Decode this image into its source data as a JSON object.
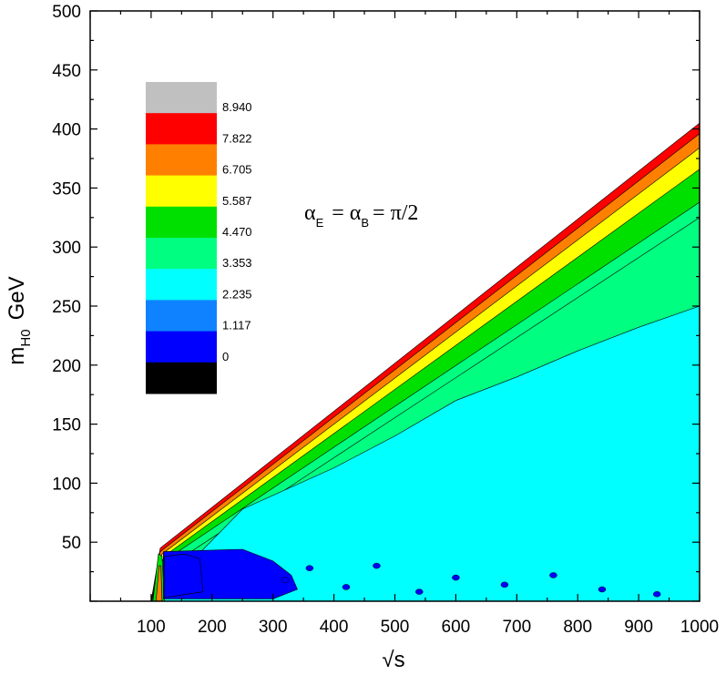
{
  "chart_data": {
    "type": "heatmap",
    "subtype": "filled-contour",
    "xlabel": "√s",
    "ylabel": {
      "main": "m",
      "sub": "H0",
      "unit": "GeV"
    },
    "xlim": [
      0,
      1000
    ],
    "ylim": [
      0,
      500
    ],
    "xticks": [
      "100",
      "200",
      "300",
      "400",
      "500",
      "600",
      "700",
      "800",
      "900",
      "1000"
    ],
    "yticks": [
      "50",
      "100",
      "150",
      "200",
      "250",
      "300",
      "350",
      "400",
      "450",
      "500"
    ],
    "annotation": {
      "alpha": "α",
      "sub_e": "E",
      "sub_b": "B",
      "rest": "= π/2"
    },
    "levels": [
      "0",
      "1.117",
      "2.235",
      "3.353",
      "4.470",
      "5.587",
      "6.705",
      "7.822",
      "8.940"
    ],
    "level_colors": [
      "#000000",
      "#0000ff",
      "#0f82ff",
      "#00ffff",
      "#00ff80",
      "#00e000",
      "#ffff00",
      "#ff8000",
      "#ff0000",
      "#c0c0c0"
    ],
    "kinematic_boundary": [
      [
        100,
        0
      ],
      [
        115,
        45
      ],
      [
        1000,
        405
      ]
    ],
    "band_boundaries": {
      "red_to_black": [
        [
          115,
          42
        ],
        [
          1000,
          396
        ]
      ],
      "orange": [
        [
          118,
          40
        ],
        [
          1000,
          384
        ]
      ],
      "yellow": [
        [
          121,
          38
        ],
        [
          1000,
          366
        ]
      ],
      "green": [
        [
          124,
          35
        ],
        [
          1000,
          338
        ]
      ],
      "springgreen": [
        [
          130,
          30
        ],
        [
          1000,
          325
        ]
      ],
      "cyan_top": [
        [
          140,
          20
        ],
        [
          250,
          78
        ],
        [
          400,
          113
        ],
        [
          500,
          140
        ],
        [
          600,
          170
        ],
        [
          700,
          190
        ],
        [
          800,
          212
        ],
        [
          900,
          232
        ],
        [
          1000,
          250
        ]
      ]
    },
    "blue_region": {
      "x": [
        120,
        300
      ],
      "y": [
        2,
        42
      ]
    }
  }
}
